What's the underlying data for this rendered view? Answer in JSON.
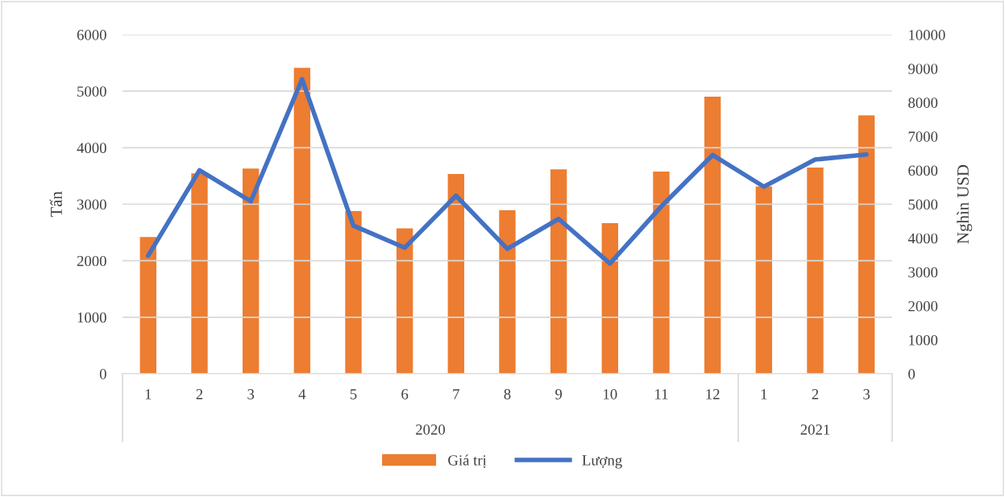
{
  "chart_data": {
    "type": "bar",
    "ylabel": "Tấn",
    "y2label": "Nghìn USD",
    "categories": [
      "1",
      "2",
      "3",
      "4",
      "5",
      "6",
      "7",
      "8",
      "9",
      "10",
      "11",
      "12",
      "1",
      "2",
      "3"
    ],
    "series": [
      {
        "name": "Giá trị",
        "type": "bar",
        "axis": "y2",
        "color": "#ed7d31",
        "values": [
          4030,
          5910,
          6050,
          9020,
          4800,
          4290,
          5890,
          4820,
          6030,
          4440,
          5960,
          8170,
          5520,
          6080,
          7620
        ]
      },
      {
        "name": "Lượng",
        "type": "line",
        "color": "#4472c4",
        "values": [
          2090,
          3600,
          3050,
          5210,
          2620,
          2230,
          3150,
          2210,
          2740,
          1950,
          2960,
          3870,
          3310,
          3790,
          3880
        ]
      }
    ],
    "annotations": [
      "2020",
      "2021"
    ],
    "ylim": [
      0,
      6000
    ],
    "yticks": [
      0,
      1000,
      2000,
      3000,
      4000,
      5000,
      6000
    ],
    "y2lim": [
      0,
      10000
    ],
    "y2ticks": [
      0,
      1000,
      2000,
      3000,
      4000,
      5000,
      6000,
      7000,
      8000,
      9000,
      10000
    ],
    "grid": "y",
    "legend": "bottom",
    "marker": "none",
    "line_style": "solid"
  }
}
